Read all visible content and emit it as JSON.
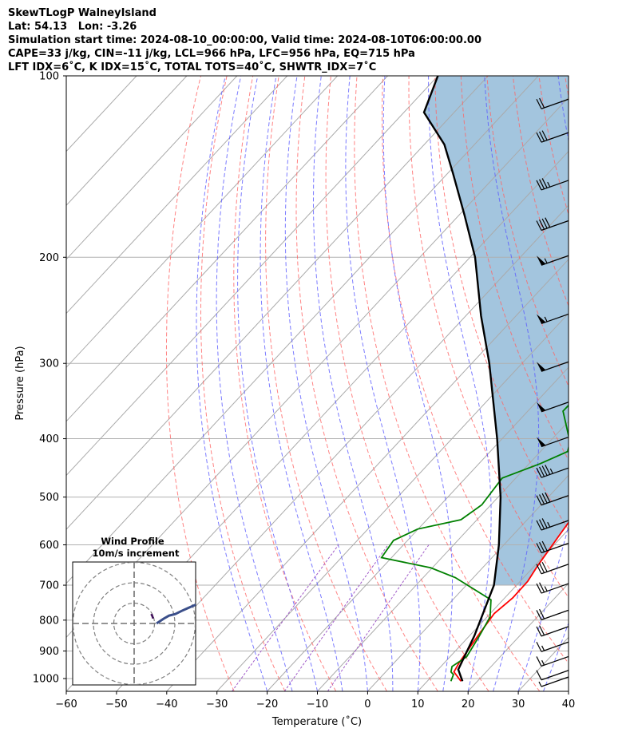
{
  "header": {
    "line1": "SkewTLogP WalneyIsland",
    "line2": "Lat: 54.13   Lon: -3.26",
    "line3": "Simulation start time: 2024-08-10_00:00:00, Valid time: 2024-08-10T06:00:00.00",
    "line4": "CAPE=33 j/kg, CIN=-11 j/kg, LCL=966 hPa, LFC=956 hPa, EQ=715 hPa",
    "line5": "LFT IDX=6˚C, K IDX=15˚C, TOTAL TOTS=40˚C, SHWTR_IDX=7˚C"
  },
  "chart_data": {
    "type": "line",
    "title": "SkewTLogP WalneyIsland",
    "xlabel": "Temperature (˚C)",
    "ylabel": "Pressure (hPa)",
    "xlim": [
      -60,
      40
    ],
    "ylim": [
      1050,
      100
    ],
    "y_scale": "log",
    "x_ticks": [
      -60,
      -50,
      -40,
      -30,
      -20,
      -10,
      0,
      10,
      20,
      30,
      40
    ],
    "y_ticks": [
      1000,
      900,
      800,
      700,
      600,
      500,
      400,
      300,
      200,
      100
    ],
    "grid": true,
    "series": [
      {
        "role": "temperature",
        "color": "#ff0000",
        "points": [
          [
            16.7,
            1010
          ],
          [
            13.6,
            975
          ],
          [
            12.9,
            940
          ],
          [
            11.7,
            850
          ],
          [
            10.8,
            780
          ],
          [
            11.6,
            735
          ],
          [
            11.5,
            690
          ],
          [
            10.6,
            650
          ],
          [
            9.3,
            580
          ],
          [
            8.1,
            520
          ],
          [
            7.6,
            480
          ],
          [
            6.8,
            440
          ],
          [
            5.4,
            400
          ],
          [
            2.6,
            370
          ],
          [
            -0.9,
            340
          ],
          [
            -4.3,
            310
          ],
          [
            -8.1,
            280
          ],
          [
            -10.9,
            255
          ],
          [
            -12.4,
            235
          ],
          [
            -11.6,
            220
          ],
          [
            -9.8,
            205
          ],
          [
            -7.8,
            190
          ],
          [
            -5.7,
            175
          ],
          [
            -3.7,
            160
          ],
          [
            -2.5,
            146
          ],
          [
            -1.1,
            132
          ],
          [
            0.6,
            120
          ],
          [
            2.3,
            110
          ],
          [
            3.6,
            100
          ]
        ]
      },
      {
        "role": "dewpoint",
        "color": "#008000",
        "points": [
          [
            14.7,
            1010
          ],
          [
            14.0,
            985
          ],
          [
            13.0,
            975
          ],
          [
            12.2,
            955
          ],
          [
            13.3,
            920
          ],
          [
            12.0,
            850
          ],
          [
            10.6,
            790
          ],
          [
            7.6,
            740
          ],
          [
            -3.6,
            680
          ],
          [
            -10.3,
            655
          ],
          [
            -22.0,
            630
          ],
          [
            -22.8,
            590
          ],
          [
            -20.1,
            565
          ],
          [
            -13.2,
            545
          ],
          [
            -11.8,
            515
          ],
          [
            -12.7,
            465
          ],
          [
            -7.8,
            440
          ],
          [
            -4.6,
            420
          ],
          [
            -5.9,
            405
          ],
          [
            -13.0,
            360
          ],
          [
            -12.9,
            335
          ],
          [
            -13.5,
            305
          ],
          [
            -13.5,
            270
          ],
          [
            -12.9,
            245
          ],
          [
            -14.3,
            225
          ],
          [
            -14.5,
            210
          ],
          [
            -16.9,
            195
          ],
          [
            -23.8,
            175
          ],
          [
            -24.9,
            165
          ],
          [
            -21.4,
            145
          ],
          [
            -17.7,
            125
          ],
          [
            -15.2,
            100
          ]
        ]
      },
      {
        "role": "parcel",
        "color": "#000000",
        "points": [
          [
            17.0,
            1010
          ],
          [
            14.0,
            966
          ],
          [
            11.0,
            850
          ],
          [
            5.5,
            700
          ],
          [
            -1.0,
            600
          ],
          [
            -9.5,
            500
          ],
          [
            -21.0,
            400
          ],
          [
            -36.5,
            300
          ],
          [
            -47.0,
            250
          ],
          [
            -59.0,
            200
          ],
          [
            -69.0,
            170
          ],
          [
            -79.0,
            145
          ],
          [
            -86.0,
            130
          ],
          [
            -96.0,
            115
          ],
          [
            -100.0,
            100
          ]
        ]
      }
    ],
    "shaded_cape_color": "#a3c5de",
    "reference_lines": {
      "isotherms_color": "#aaaaaa",
      "dry_adiabats_color": "#ff6464",
      "moist_adiabats_color": "#5a5aff",
      "mixing_ratio_color": "#a05ac8"
    },
    "wind_barbs": [
      {
        "p": 1000,
        "speed_kt": 5,
        "dir": 250
      },
      {
        "p": 975,
        "speed_kt": 10,
        "dir": 250
      },
      {
        "p": 925,
        "speed_kt": 15,
        "dir": 255
      },
      {
        "p": 875,
        "speed_kt": 15,
        "dir": 255
      },
      {
        "p": 825,
        "speed_kt": 20,
        "dir": 260
      },
      {
        "p": 775,
        "speed_kt": 20,
        "dir": 260
      },
      {
        "p": 700,
        "speed_kt": 25,
        "dir": 255
      },
      {
        "p": 650,
        "speed_kt": 30,
        "dir": 255
      },
      {
        "p": 600,
        "speed_kt": 30,
        "dir": 255
      },
      {
        "p": 550,
        "speed_kt": 35,
        "dir": 255
      },
      {
        "p": 500,
        "speed_kt": 40,
        "dir": 255
      },
      {
        "p": 450,
        "speed_kt": 45,
        "dir": 255
      },
      {
        "p": 400,
        "speed_kt": 50,
        "dir": 255
      },
      {
        "p": 350,
        "speed_kt": 50,
        "dir": 255
      },
      {
        "p": 300,
        "speed_kt": 50,
        "dir": 255
      },
      {
        "p": 250,
        "speed_kt": 55,
        "dir": 255
      },
      {
        "p": 200,
        "speed_kt": 55,
        "dir": 255
      },
      {
        "p": 175,
        "speed_kt": 40,
        "dir": 255
      },
      {
        "p": 150,
        "speed_kt": 35,
        "dir": 255
      },
      {
        "p": 125,
        "speed_kt": 30,
        "dir": 255
      },
      {
        "p": 110,
        "speed_kt": 20,
        "dir": 255
      }
    ],
    "inset": {
      "title": "Wind Profile",
      "subtitle": "10m/s increment",
      "hodograph": [
        [
          0.0,
          0.0
        ],
        [
          0.9,
          0.3
        ],
        [
          1.6,
          0.5
        ],
        [
          2.4,
          0.6
        ],
        [
          3.2,
          0.8
        ],
        [
          4.1,
          1.0
        ],
        [
          5.0,
          1.2
        ],
        [
          5.8,
          1.3
        ],
        [
          6.6,
          1.5
        ],
        [
          7.6,
          1.7
        ],
        [
          8.8,
          1.9
        ]
      ],
      "hodograph_tail": [
        [
          8.0,
          2.1
        ],
        [
          9.2,
          2.4
        ],
        [
          10.2,
          2.7
        ]
      ],
      "hodograph_start": [
        [
          -0.2,
          0.6
        ],
        [
          -0.4,
          1.1
        ],
        [
          -0.6,
          1.4
        ]
      ]
    }
  }
}
